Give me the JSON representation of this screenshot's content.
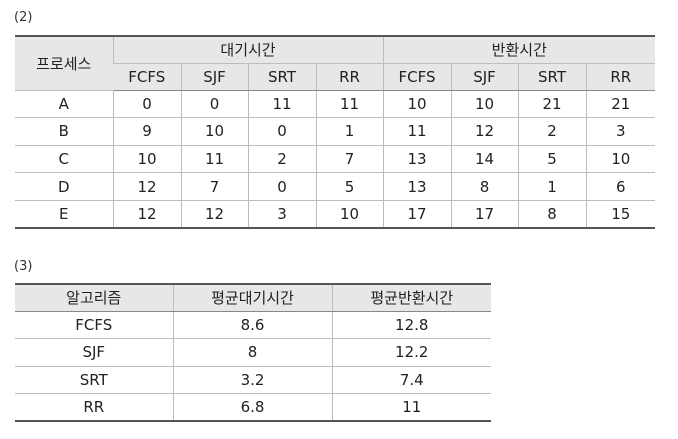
{
  "section2": {
    "label": "(2)",
    "header_process": "프로세스",
    "group_wait": "대기시간",
    "group_turnaround": "반환시간",
    "algos": [
      "FCFS",
      "SJF",
      "SRT",
      "RR"
    ],
    "rows": [
      {
        "process": "A",
        "wait": [
          "0",
          "0",
          "11",
          "11"
        ],
        "turnaround": [
          "10",
          "10",
          "21",
          "21"
        ]
      },
      {
        "process": "B",
        "wait": [
          "9",
          "10",
          "0",
          "1"
        ],
        "turnaround": [
          "11",
          "12",
          "2",
          "3"
        ]
      },
      {
        "process": "C",
        "wait": [
          "10",
          "11",
          "2",
          "7"
        ],
        "turnaround": [
          "13",
          "14",
          "5",
          "10"
        ]
      },
      {
        "process": "D",
        "wait": [
          "12",
          "7",
          "0",
          "5"
        ],
        "turnaround": [
          "13",
          "8",
          "1",
          "6"
        ]
      },
      {
        "process": "E",
        "wait": [
          "12",
          "12",
          "3",
          "10"
        ],
        "turnaround": [
          "17",
          "17",
          "8",
          "15"
        ]
      }
    ]
  },
  "section3": {
    "label": "(3)",
    "headers": [
      "알고리즘",
      "평균대기시간",
      "평균반환시간"
    ],
    "rows": [
      [
        "FCFS",
        "8.6",
        "12.8"
      ],
      [
        "SJF",
        "8",
        "12.2"
      ],
      [
        "SRT",
        "3.2",
        "7.4"
      ],
      [
        "RR",
        "6.8",
        "11"
      ]
    ]
  }
}
